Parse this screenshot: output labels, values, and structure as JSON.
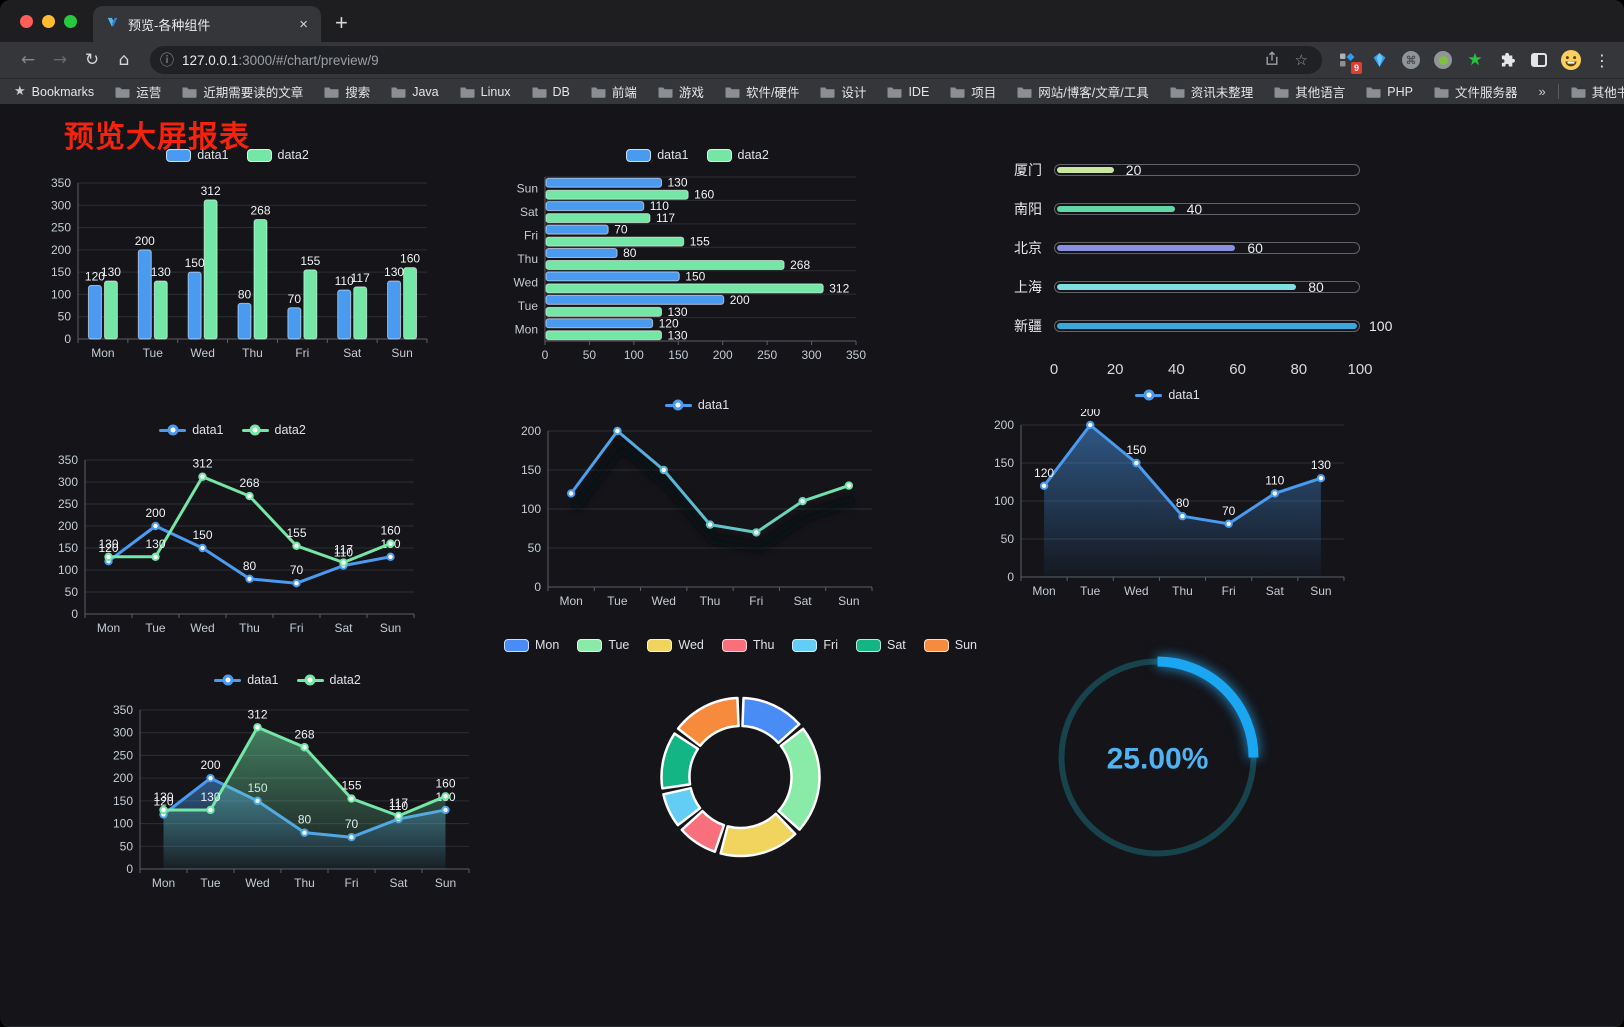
{
  "browser": {
    "tab_title": "预览-各种组件",
    "url_host": "127.0.0.1",
    "url_rest": ":3000/#/chart/preview/9",
    "bookmarks_label": "Bookmarks",
    "bookmarks": [
      "运营",
      "近期需要读的文章",
      "搜索",
      "Java",
      "Linux",
      "DB",
      "前端",
      "游戏",
      "软件/硬件",
      "设计",
      "IDE",
      "项目",
      "网站/博客/文章/工具",
      "资讯未整理",
      "其他语言",
      "PHP",
      "文件服务器"
    ],
    "overflow_chevron": "»",
    "other_bookmarks": "其他书签",
    "extension_badge": "9",
    "tab_close": "×",
    "new_tab": "+"
  },
  "page": {
    "title": "预览大屏报表",
    "title_color": "#f5220c"
  },
  "chart_data": [
    {
      "id": "grouped-bar",
      "type": "bar",
      "categories": [
        "Mon",
        "Tue",
        "Wed",
        "Thu",
        "Fri",
        "Sat",
        "Sun"
      ],
      "series": [
        {
          "name": "data1",
          "color": "#4a9bf0",
          "values": [
            120,
            200,
            150,
            80,
            70,
            110,
            130
          ]
        },
        {
          "name": "data2",
          "color": "#74e6a6",
          "values": [
            130,
            130,
            312,
            268,
            155,
            117,
            160
          ]
        }
      ],
      "ylim": [
        0,
        350
      ],
      "ystep": 50,
      "value_labels": true,
      "legend": "rect"
    },
    {
      "id": "horizontal-bar",
      "type": "bar",
      "horizontal": true,
      "categories_top_to_bottom": [
        "Sun",
        "Sat",
        "Fri",
        "Thu",
        "Wed",
        "Tue",
        "Mon"
      ],
      "series": [
        {
          "name": "data1",
          "color": "#4a9bf0",
          "values": [
            130,
            110,
            70,
            80,
            150,
            200,
            120
          ]
        },
        {
          "name": "data2",
          "color": "#74e6a6",
          "values": [
            160,
            117,
            155,
            268,
            312,
            130,
            130
          ]
        }
      ],
      "xlim": [
        0,
        350
      ],
      "xstep": 50,
      "value_labels": true,
      "legend": "rect"
    },
    {
      "id": "city-progress",
      "type": "bar",
      "variant": "progress-list",
      "items": [
        {
          "label": "厦门",
          "value": 20,
          "color": "#c9e89e"
        },
        {
          "label": "南阳",
          "value": 40,
          "color": "#5fd8a5"
        },
        {
          "label": "北京",
          "value": 60,
          "color": "#8b90e0"
        },
        {
          "label": "上海",
          "value": 80,
          "color": "#7fdede"
        },
        {
          "label": "新疆",
          "value": 100,
          "color": "#38a8dd"
        }
      ],
      "xticks": [
        0,
        20,
        40,
        60,
        80,
        100
      ],
      "xlim": [
        0,
        100
      ]
    },
    {
      "id": "line-two-series",
      "type": "line",
      "categories": [
        "Mon",
        "Tue",
        "Wed",
        "Thu",
        "Fri",
        "Sat",
        "Sun"
      ],
      "series": [
        {
          "name": "data1",
          "color": "#4a9bf0",
          "values": [
            120,
            200,
            150,
            80,
            70,
            110,
            130
          ]
        },
        {
          "name": "data2",
          "color": "#74e6a6",
          "values": [
            130,
            130,
            312,
            268,
            155,
            117,
            160
          ]
        }
      ],
      "ylim": [
        0,
        350
      ],
      "ystep": 50,
      "value_labels": true,
      "legend": "line"
    },
    {
      "id": "gradient-line",
      "type": "line",
      "variant": "gradient-shadow",
      "categories": [
        "Mon",
        "Tue",
        "Wed",
        "Thu",
        "Fri",
        "Sat",
        "Sun"
      ],
      "series": [
        {
          "name": "data1",
          "color": "#4a9bf0",
          "color_end": "#74e6a6",
          "values": [
            120,
            200,
            150,
            80,
            70,
            110,
            130
          ]
        }
      ],
      "ylim": [
        0,
        200
      ],
      "ystep": 50,
      "value_labels": false,
      "legend": "line"
    },
    {
      "id": "area-single",
      "type": "area",
      "categories": [
        "Mon",
        "Tue",
        "Wed",
        "Thu",
        "Fri",
        "Sat",
        "Sun"
      ],
      "series": [
        {
          "name": "data1",
          "color": "#4a9bf0",
          "values": [
            120,
            200,
            150,
            80,
            70,
            110,
            130
          ],
          "area": true
        }
      ],
      "ylim": [
        0,
        200
      ],
      "ystep": 50,
      "value_labels": true,
      "legend": "line"
    },
    {
      "id": "area-two-series",
      "type": "area",
      "categories": [
        "Mon",
        "Tue",
        "Wed",
        "Thu",
        "Fri",
        "Sat",
        "Sun"
      ],
      "series": [
        {
          "name": "data1",
          "color": "#4a9bf0",
          "values": [
            120,
            200,
            150,
            80,
            70,
            110,
            130
          ],
          "area": true
        },
        {
          "name": "data2",
          "color": "#74e6a6",
          "values": [
            130,
            130,
            312,
            268,
            155,
            117,
            160
          ],
          "area": true
        }
      ],
      "ylim": [
        0,
        350
      ],
      "ystep": 50,
      "value_labels": true,
      "legend": "line"
    },
    {
      "id": "donut",
      "type": "pie",
      "labels": [
        "Mon",
        "Tue",
        "Wed",
        "Thu",
        "Fri",
        "Sat",
        "Sun"
      ],
      "values": [
        120,
        200,
        150,
        80,
        70,
        110,
        130
      ],
      "colors": [
        "#4a8cf5",
        "#8aeaa8",
        "#f0d45e",
        "#f8707c",
        "#63cdf5",
        "#14b584",
        "#f68b3e"
      ],
      "legend": "rect",
      "inner_radius_ratio": 0.64
    },
    {
      "id": "gauge",
      "type": "gauge",
      "value": 25,
      "display": "25.00%",
      "color": "#1ba6f2",
      "track_color": "#17434c",
      "text_color": "#4fb3f2"
    }
  ]
}
